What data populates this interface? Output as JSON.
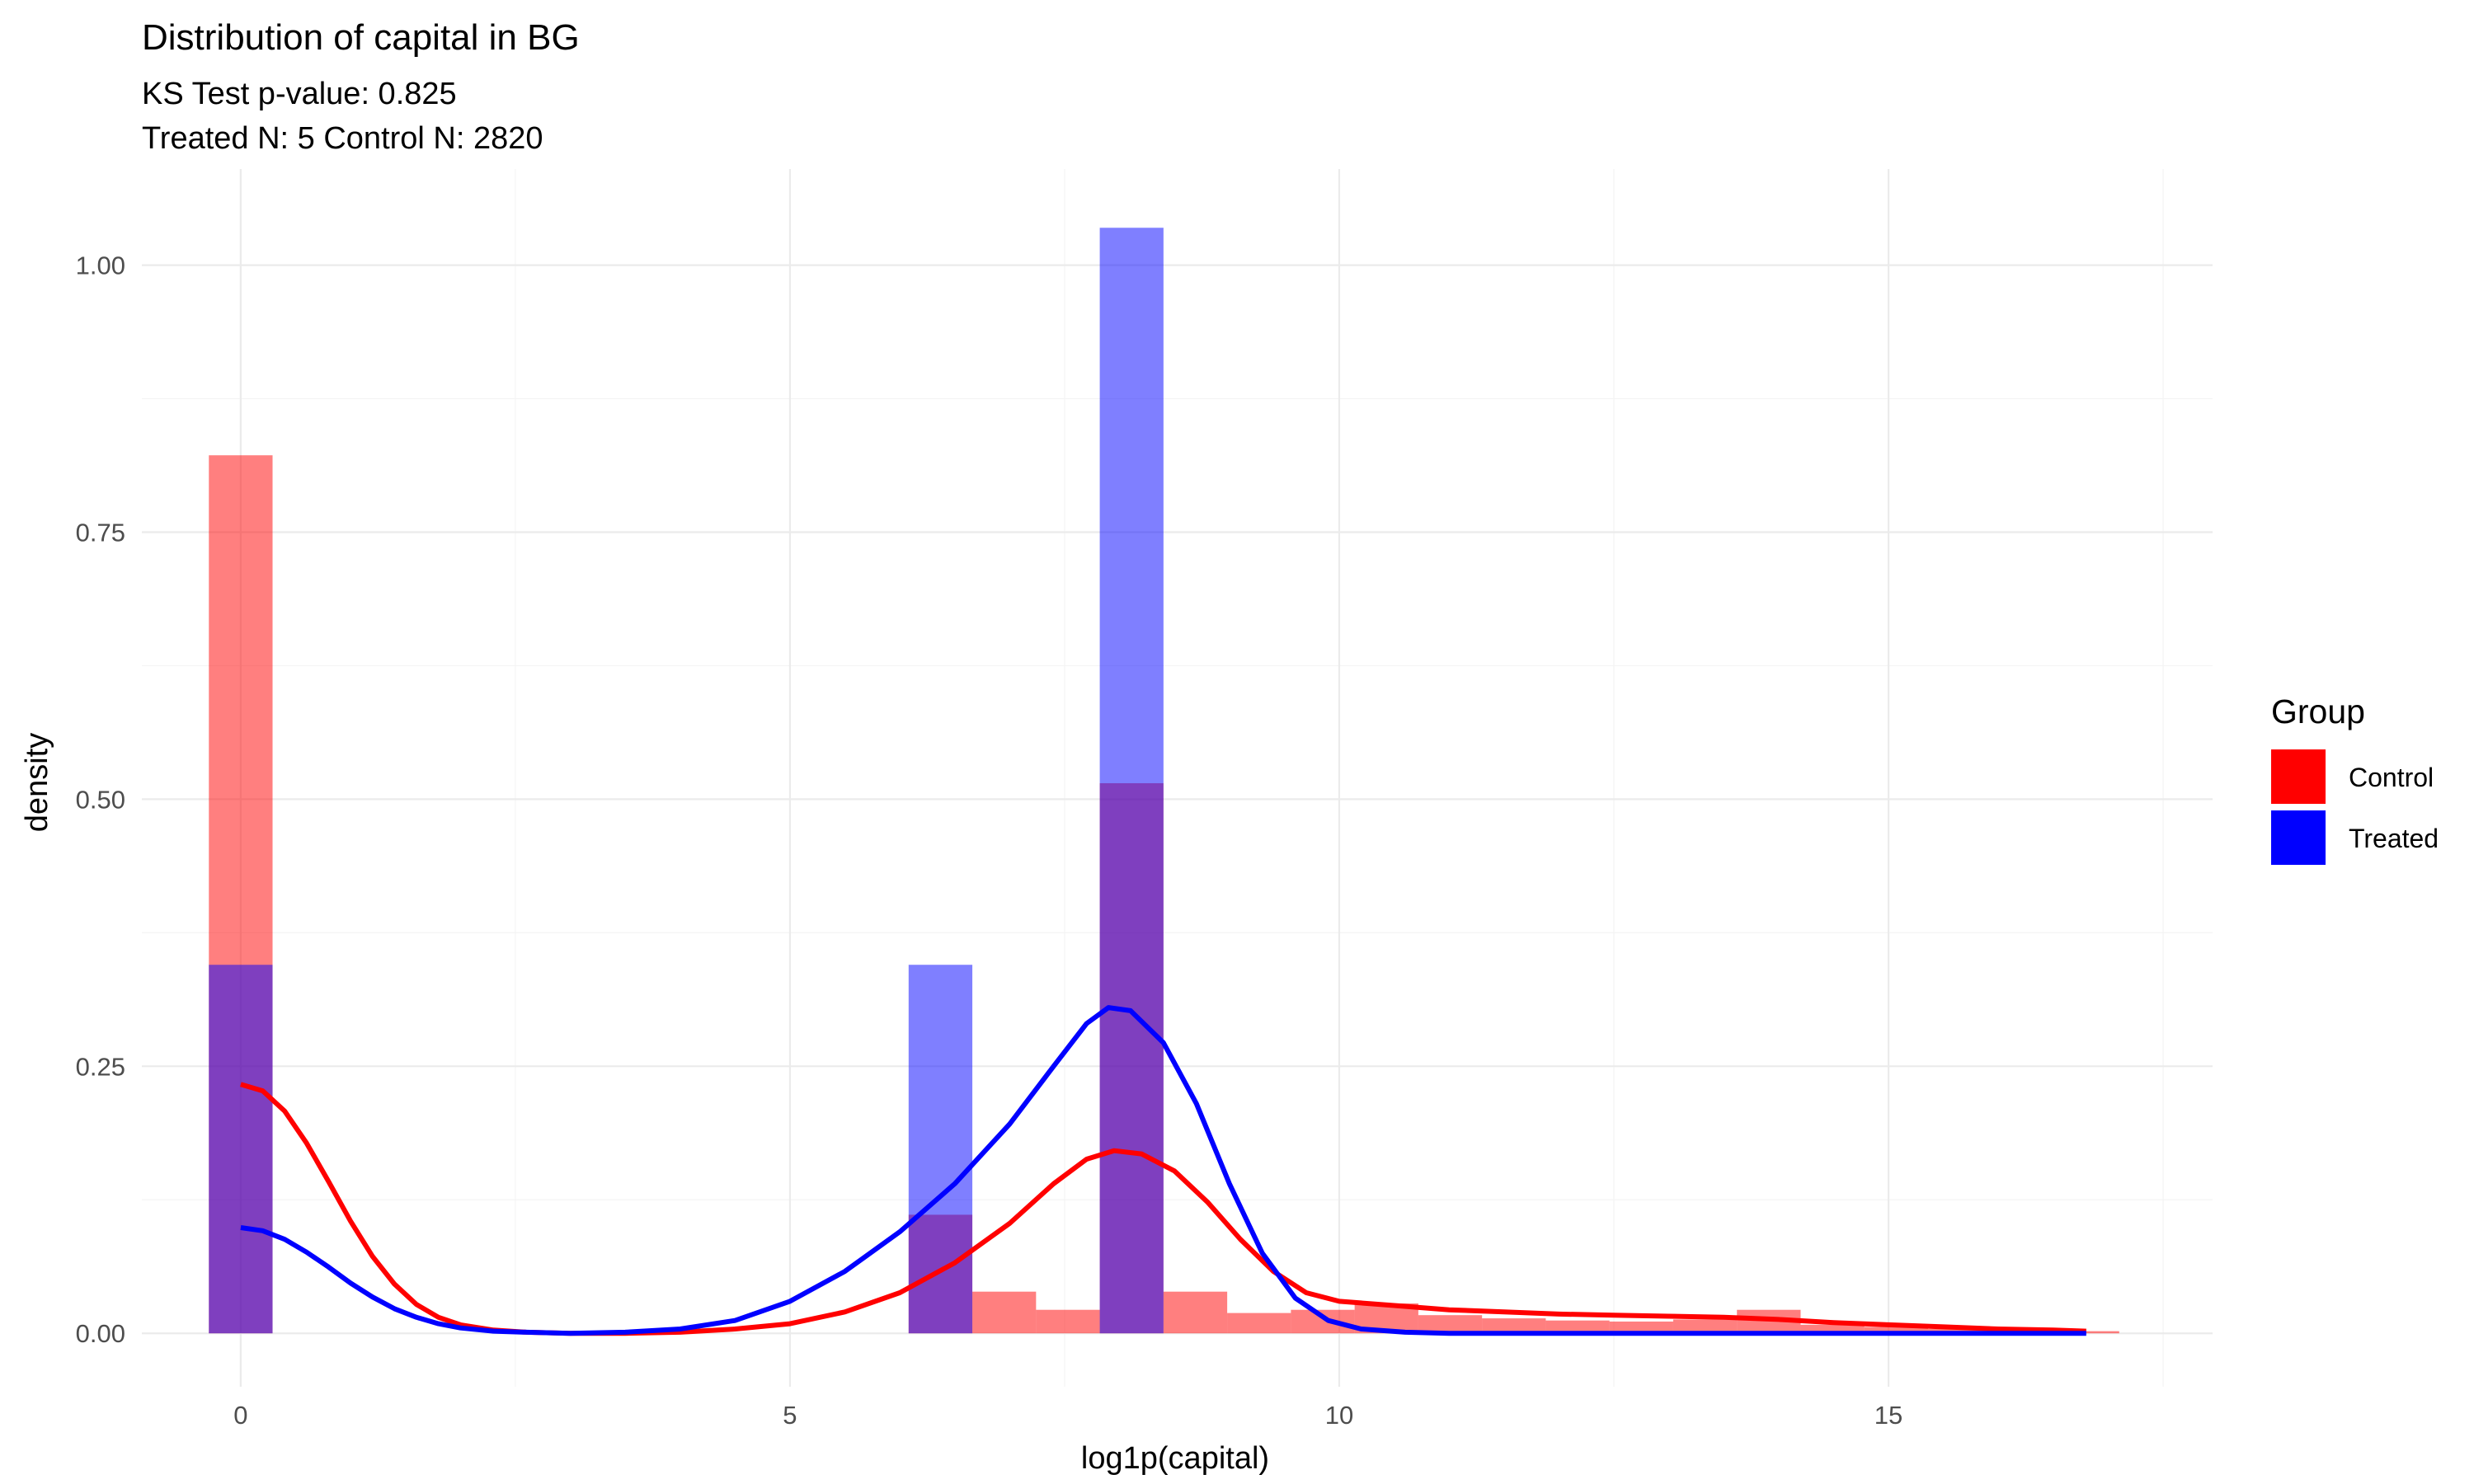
{
  "chart_data": {
    "type": "bar",
    "title": "Distribution of capital in BG",
    "subtitle_lines": [
      "KS Test p-value: 0.825",
      "Treated N: 5 Control N: 2820"
    ],
    "xlabel": "log1p(capital)",
    "ylabel": "density",
    "xlim": [
      -0.9,
      17.95
    ],
    "ylim": [
      -0.05,
      1.09
    ],
    "x_ticks": [
      0,
      5,
      10,
      15
    ],
    "x_tick_labels": [
      "0",
      "5",
      "10",
      "15"
    ],
    "y_ticks": [
      0,
      0.25,
      0.5,
      0.75,
      1.0
    ],
    "y_tick_labels": [
      "0.00",
      "0.25",
      "0.50",
      "0.75",
      "1.00"
    ],
    "grid": true,
    "legend": {
      "title": "Group",
      "position": "right",
      "entries": [
        "Control",
        "Treated"
      ]
    },
    "colors": {
      "Control": "#ff0000",
      "Treated": "#0000ff"
    },
    "bin_width": 0.58,
    "series": [
      {
        "name": "Control",
        "histogram": [
          {
            "x": 0.0,
            "density": 0.822
          },
          {
            "x": 6.37,
            "density": 0.111
          },
          {
            "x": 6.95,
            "density": 0.039
          },
          {
            "x": 7.53,
            "density": 0.022
          },
          {
            "x": 8.11,
            "density": 0.515
          },
          {
            "x": 8.69,
            "density": 0.039
          },
          {
            "x": 9.27,
            "density": 0.019
          },
          {
            "x": 9.85,
            "density": 0.022
          },
          {
            "x": 10.43,
            "density": 0.028
          },
          {
            "x": 11.01,
            "density": 0.017
          },
          {
            "x": 11.59,
            "density": 0.014
          },
          {
            "x": 12.17,
            "density": 0.012
          },
          {
            "x": 12.75,
            "density": 0.011
          },
          {
            "x": 13.33,
            "density": 0.013
          },
          {
            "x": 13.91,
            "density": 0.022
          },
          {
            "x": 14.49,
            "density": 0.008
          },
          {
            "x": 15.07,
            "density": 0.006
          },
          {
            "x": 15.65,
            "density": 0.004
          },
          {
            "x": 16.23,
            "density": 0.003
          },
          {
            "x": 16.81,
            "density": 0.002
          }
        ],
        "density_curve": [
          [
            0.0,
            0.233
          ],
          [
            0.2,
            0.227
          ],
          [
            0.4,
            0.208
          ],
          [
            0.6,
            0.178
          ],
          [
            0.8,
            0.142
          ],
          [
            1.0,
            0.105
          ],
          [
            1.2,
            0.072
          ],
          [
            1.4,
            0.046
          ],
          [
            1.6,
            0.027
          ],
          [
            1.8,
            0.015
          ],
          [
            2.0,
            0.008
          ],
          [
            2.3,
            0.003
          ],
          [
            2.6,
            0.001
          ],
          [
            3.0,
            0.0
          ],
          [
            3.5,
            0.0
          ],
          [
            4.0,
            0.001
          ],
          [
            4.5,
            0.004
          ],
          [
            5.0,
            0.009
          ],
          [
            5.5,
            0.02
          ],
          [
            6.0,
            0.038
          ],
          [
            6.5,
            0.066
          ],
          [
            7.0,
            0.103
          ],
          [
            7.4,
            0.14
          ],
          [
            7.7,
            0.163
          ],
          [
            7.95,
            0.171
          ],
          [
            8.2,
            0.168
          ],
          [
            8.5,
            0.152
          ],
          [
            8.8,
            0.123
          ],
          [
            9.1,
            0.088
          ],
          [
            9.4,
            0.058
          ],
          [
            9.7,
            0.038
          ],
          [
            10.0,
            0.03
          ],
          [
            10.5,
            0.026
          ],
          [
            11.0,
            0.022
          ],
          [
            11.5,
            0.02
          ],
          [
            12.0,
            0.018
          ],
          [
            12.5,
            0.017
          ],
          [
            13.0,
            0.016
          ],
          [
            13.5,
            0.015
          ],
          [
            14.0,
            0.013
          ],
          [
            14.5,
            0.01
          ],
          [
            15.0,
            0.008
          ],
          [
            15.5,
            0.006
          ],
          [
            16.0,
            0.004
          ],
          [
            16.5,
            0.003
          ],
          [
            16.8,
            0.002
          ]
        ]
      },
      {
        "name": "Treated",
        "histogram": [
          {
            "x": 0.0,
            "density": 0.345
          },
          {
            "x": 6.37,
            "density": 0.345
          },
          {
            "x": 8.11,
            "density": 1.035
          }
        ],
        "density_curve": [
          [
            0.0,
            0.099
          ],
          [
            0.2,
            0.096
          ],
          [
            0.4,
            0.088
          ],
          [
            0.6,
            0.076
          ],
          [
            0.8,
            0.062
          ],
          [
            1.0,
            0.047
          ],
          [
            1.2,
            0.034
          ],
          [
            1.4,
            0.023
          ],
          [
            1.6,
            0.015
          ],
          [
            1.8,
            0.009
          ],
          [
            2.0,
            0.005
          ],
          [
            2.3,
            0.002
          ],
          [
            2.6,
            0.001
          ],
          [
            3.0,
            0.0
          ],
          [
            3.5,
            0.001
          ],
          [
            4.0,
            0.004
          ],
          [
            4.5,
            0.012
          ],
          [
            5.0,
            0.03
          ],
          [
            5.5,
            0.058
          ],
          [
            6.0,
            0.095
          ],
          [
            6.5,
            0.14
          ],
          [
            7.0,
            0.196
          ],
          [
            7.4,
            0.25
          ],
          [
            7.7,
            0.29
          ],
          [
            7.9,
            0.305
          ],
          [
            8.1,
            0.302
          ],
          [
            8.4,
            0.272
          ],
          [
            8.7,
            0.215
          ],
          [
            9.0,
            0.14
          ],
          [
            9.3,
            0.075
          ],
          [
            9.6,
            0.033
          ],
          [
            9.9,
            0.012
          ],
          [
            10.2,
            0.004
          ],
          [
            10.6,
            0.001
          ],
          [
            11.0,
            0.0
          ],
          [
            12.0,
            0.0
          ],
          [
            13.0,
            0.0
          ],
          [
            14.0,
            0.0
          ],
          [
            15.0,
            0.0
          ],
          [
            16.0,
            0.0
          ],
          [
            16.8,
            0.0
          ]
        ]
      }
    ]
  }
}
